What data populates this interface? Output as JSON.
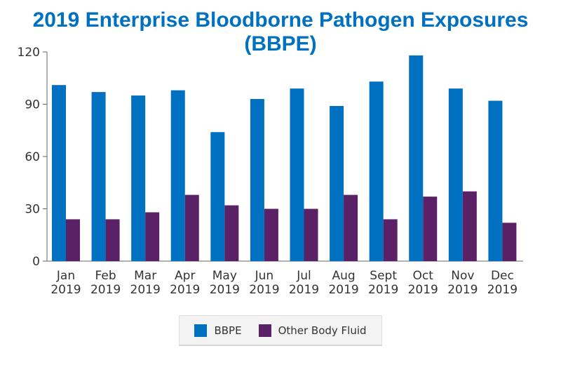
{
  "colors": {
    "bbpe": "#0070c0",
    "other": "#5b2166",
    "title": "#0070c0",
    "axis": "#666666"
  },
  "chart_data": {
    "type": "bar",
    "title": "2019 Enterprise Bloodborne Pathogen Exposures (BBPE)",
    "xlabel": "",
    "ylabel": "",
    "ylim": [
      0,
      120
    ],
    "yticks": [
      0,
      30,
      60,
      90,
      120
    ],
    "categories": [
      [
        "Jan",
        "2019"
      ],
      [
        "Feb",
        "2019"
      ],
      [
        "Mar",
        "2019"
      ],
      [
        "Apr",
        "2019"
      ],
      [
        "May",
        "2019"
      ],
      [
        "Jun",
        "2019"
      ],
      [
        "Jul",
        "2019"
      ],
      [
        "Aug",
        "2019"
      ],
      [
        "Sept",
        "2019"
      ],
      [
        "Oct",
        "2019"
      ],
      [
        "Nov",
        "2019"
      ],
      [
        "Dec",
        "2019"
      ]
    ],
    "series": [
      {
        "name": "BBPE",
        "color": "#0070c0",
        "values": [
          101,
          97,
          95,
          98,
          74,
          93,
          99,
          89,
          103,
          118,
          99,
          92
        ]
      },
      {
        "name": "Other Body Fluid",
        "color": "#5b2166",
        "values": [
          24,
          24,
          28,
          38,
          32,
          30,
          30,
          38,
          24,
          37,
          40,
          22
        ]
      }
    ],
    "grid": false,
    "legend_position": "bottom"
  }
}
